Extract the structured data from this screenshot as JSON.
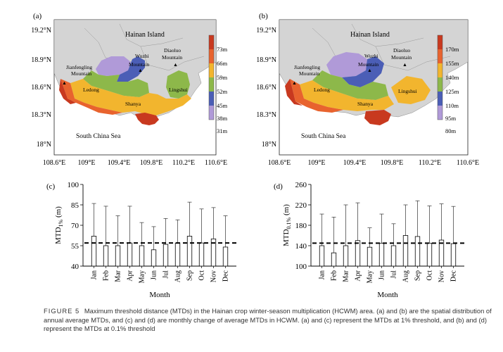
{
  "figure": {
    "panel_labels": [
      "(a)",
      "(b)",
      "(c)",
      "(d)"
    ],
    "caption": {
      "label": "FIGURE 5",
      "text": "Maximum threshold distance (MTDs) in the Hainan crop winter-season multiplication (HCWM) area. (a) and (b) are the spatial distribution of annual average MTDs, and (c) and (d) are monthly change of average MTDs in HCWM. (a) and (c) represent the MTDs at 1% threshold, and (b) and (d) represent the MTDs at 0.1% threshold"
    }
  },
  "maps": [
    {
      "panel": "(a)",
      "lat_ticks": [
        "19.2°N",
        "18.9°N",
        "18.6°N",
        "18.3°N",
        "18°N"
      ],
      "lon_ticks": [
        "108.6°E",
        "109°E",
        "109.4°E",
        "109.8°E",
        "110.2°E",
        "110.6°E"
      ],
      "place_labels": [
        "Hainan Island",
        "Wuzhi Mountain",
        "Diaoluo Mountain",
        "Jianfengling Mountain",
        "Ledong",
        "Shanya",
        "Lingshui",
        "South China Sea"
      ],
      "legend": [
        "73m",
        "66m",
        "59m",
        "52m",
        "45m",
        "38m",
        "31m"
      ]
    },
    {
      "panel": "(b)",
      "lat_ticks": [
        "19.2°N",
        "18.9°N",
        "18.6°N",
        "18.3°N",
        "18°N"
      ],
      "lon_ticks": [
        "108.6°E",
        "109°E",
        "109.4°E",
        "109.8°E",
        "110.2°E",
        "110.6°E"
      ],
      "place_labels": [
        "Hainan Island",
        "Wuzhi Mountain",
        "Diaoluo Mountain",
        "Jianfengling Mountain",
        "Ledong",
        "Shanya",
        "Lingshui",
        "South China Sea"
      ],
      "legend": [
        "170m",
        "155m",
        "140m",
        "125m",
        "110m",
        "95m",
        "80m"
      ]
    }
  ],
  "legend_colors": [
    "#c8391f",
    "#e8632e",
    "#f2b52e",
    "#8db84a",
    "#4b5eb6",
    "#b09ad8"
  ],
  "colors": {
    "land_base": "#d4d4d4",
    "sea": "#ffffff",
    "mountain_marker": "#000000"
  },
  "chart_data": [
    {
      "type": "bar",
      "panel": "(c)",
      "categories": [
        "Jan",
        "Feb",
        "Mar",
        "Apr",
        "May",
        "Jun",
        "Jul",
        "Aug",
        "Sep",
        "Oct",
        "Nov",
        "Dec"
      ],
      "values": [
        62,
        55,
        55,
        57,
        55,
        52,
        56,
        57,
        62,
        57,
        60,
        54
      ],
      "error_upper": [
        86,
        84,
        77,
        84,
        72,
        69,
        75,
        74,
        87,
        82,
        83,
        77
      ],
      "mean_line": 57,
      "ylabel": "MTD1% (m)",
      "xlabel": "Month",
      "yticks": [
        40,
        55,
        70,
        85,
        100
      ],
      "ylim": [
        40,
        100
      ],
      "grid": false
    },
    {
      "type": "bar",
      "panel": "(d)",
      "categories": [
        "Jan",
        "Feb",
        "Mar",
        "Apr",
        "May",
        "Jun",
        "Jul",
        "Aug",
        "Sep",
        "Oct",
        "Nov",
        "Dec"
      ],
      "values": [
        140,
        126,
        140,
        150,
        137,
        145,
        140,
        160,
        158,
        145,
        151,
        144
      ],
      "error_upper": [
        202,
        196,
        220,
        224,
        175,
        202,
        183,
        220,
        228,
        218,
        222,
        217
      ],
      "mean_line": 145,
      "ylabel": "MTD0.1% (m)",
      "xlabel": "Month",
      "yticks": [
        100,
        140,
        180,
        220,
        260
      ],
      "ylim": [
        100,
        260
      ],
      "grid": false
    }
  ]
}
